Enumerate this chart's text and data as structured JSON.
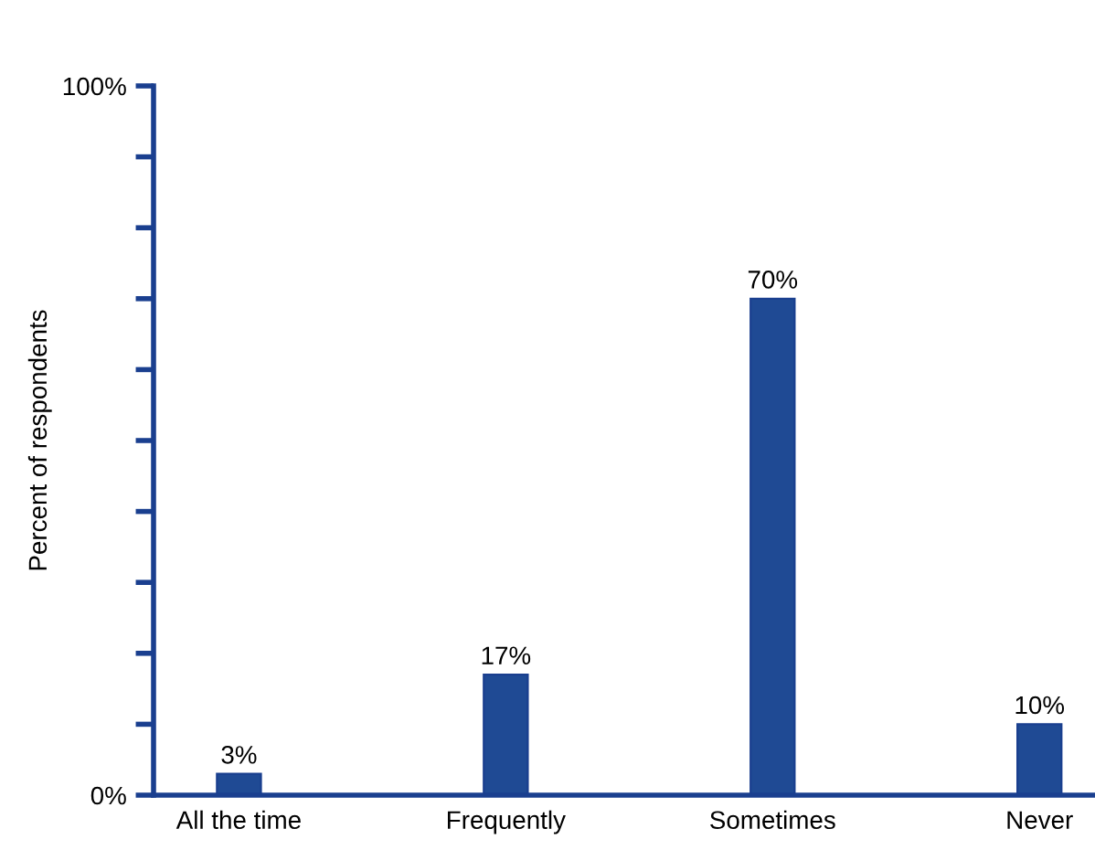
{
  "chart_data": {
    "type": "bar",
    "ylabel": "Percent of respondents",
    "categories": [
      "All the time",
      "Frequently",
      "Sometimes",
      "Never"
    ],
    "values": [
      3,
      17,
      70,
      10
    ],
    "color": "#1f4a94",
    "value_labels": [
      "3%",
      "17%",
      "70%",
      "10%"
    ],
    "ylim": [
      0,
      100
    ],
    "yticks": [
      {
        "value": 0,
        "label": "0%"
      },
      {
        "value": 10,
        "label": null
      },
      {
        "value": 20,
        "label": null
      },
      {
        "value": 30,
        "label": null
      },
      {
        "value": 40,
        "label": null
      },
      {
        "value": 50,
        "label": null
      },
      {
        "value": 60,
        "label": null
      },
      {
        "value": 70,
        "label": null
      },
      {
        "value": 80,
        "label": null
      },
      {
        "value": 90,
        "label": null
      },
      {
        "value": 100,
        "label": "100%"
      }
    ],
    "grid": false,
    "legend": false
  }
}
